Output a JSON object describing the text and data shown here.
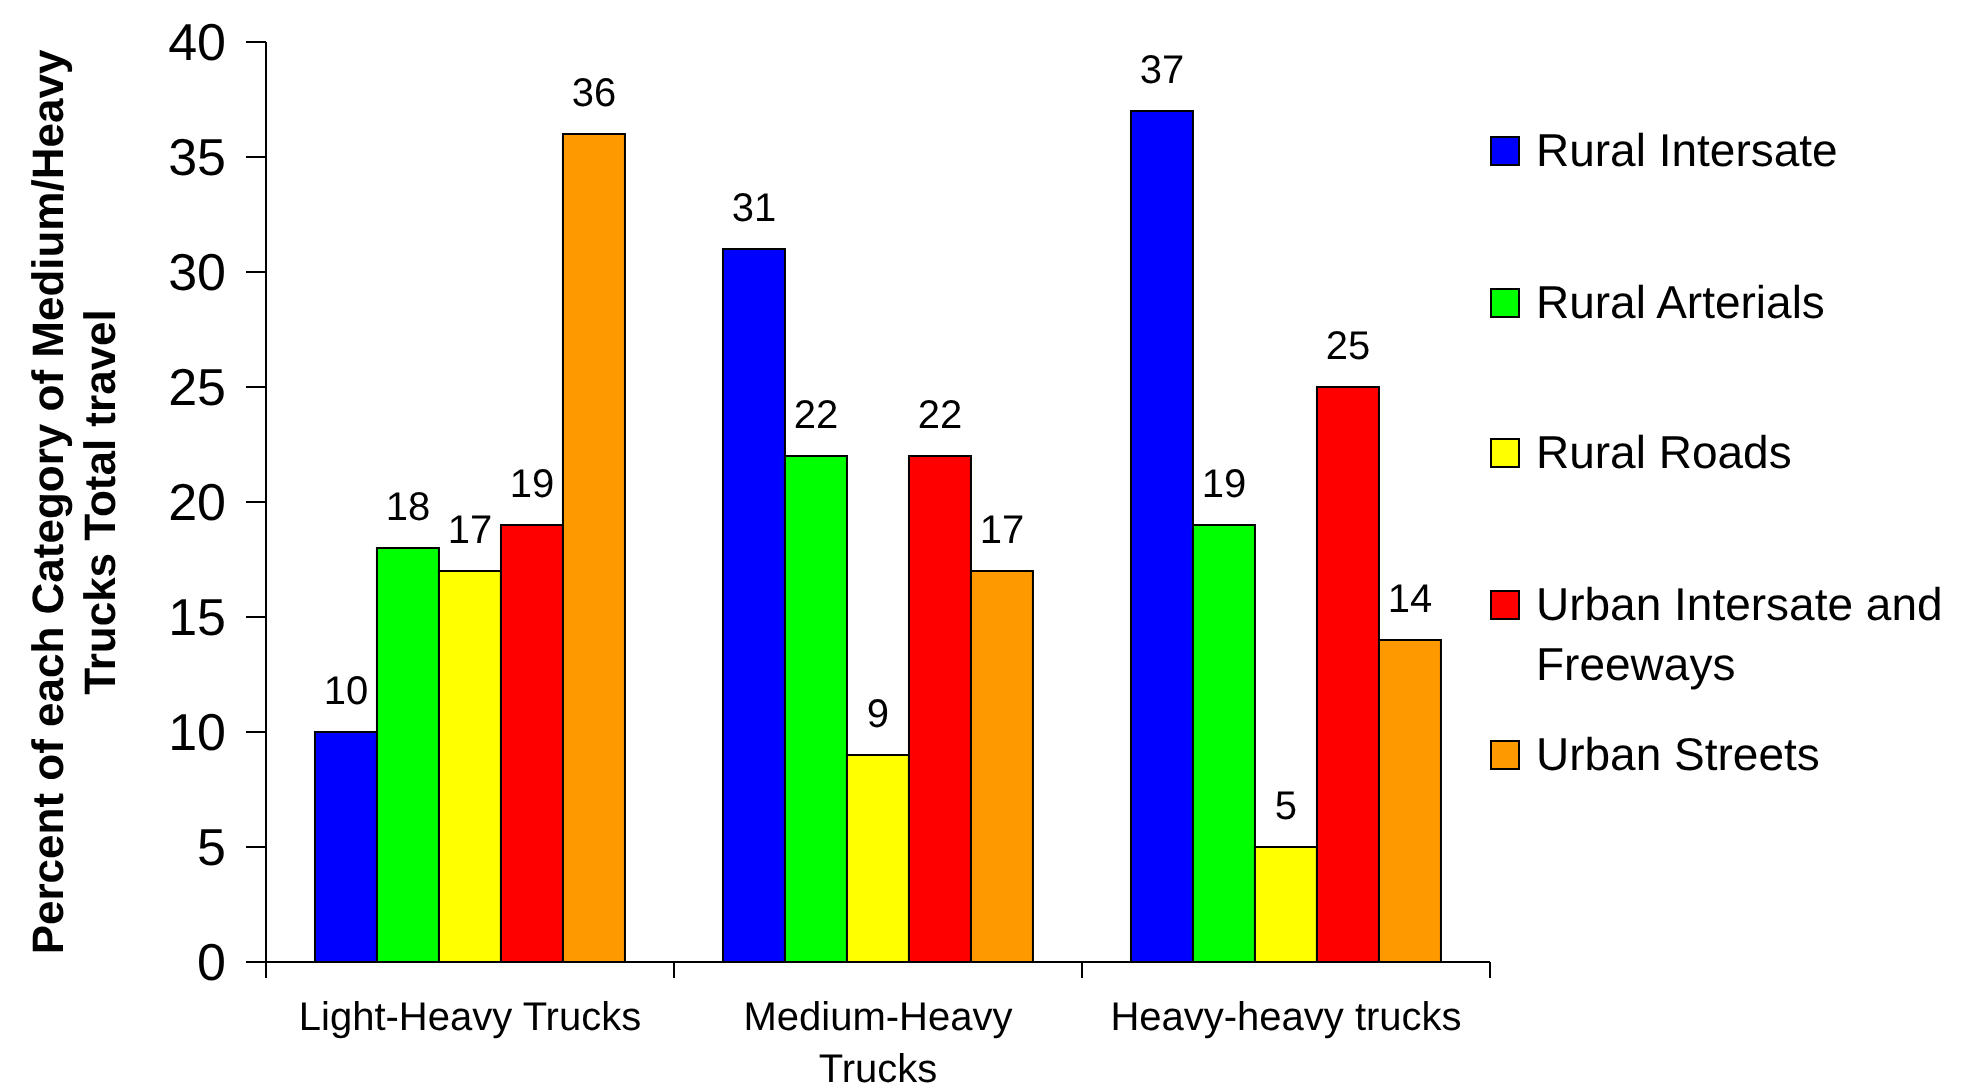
{
  "chart_data": {
    "type": "bar",
    "ylabel": "Percent of each Category of Medium/Heavy Trucks Total travel",
    "categories": [
      "Light-Heavy Trucks",
      "Medium-Heavy Trucks",
      "Heavy-heavy trucks"
    ],
    "series": [
      {
        "name": "Rural Intersate",
        "color": "#0000ff",
        "values": [
          10,
          31,
          37
        ]
      },
      {
        "name": "Rural Arterials",
        "color": "#00ff00",
        "values": [
          18,
          22,
          19
        ]
      },
      {
        "name": "Rural Roads",
        "color": "#ffff00",
        "values": [
          17,
          9,
          5
        ]
      },
      {
        "name": "Urban Intersate and Freeways",
        "color": "#ff0000",
        "values": [
          19,
          22,
          25
        ]
      },
      {
        "name": "Urban Streets",
        "color": "#ff9900",
        "values": [
          36,
          17,
          14
        ]
      }
    ],
    "ylim": [
      0,
      40
    ],
    "yticks": [
      0,
      5,
      10,
      15,
      20,
      25,
      30,
      35,
      40
    ],
    "legend": "right",
    "data_labels": true
  }
}
